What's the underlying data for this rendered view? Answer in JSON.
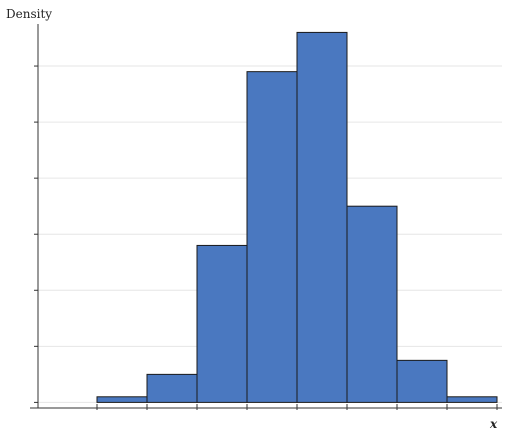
{
  "chart_data": {
    "type": "histogram",
    "y_label": "Density",
    "x_label": "x",
    "bins": [
      0,
      1,
      2,
      3,
      4,
      5,
      6,
      7,
      8
    ],
    "values": [
      0.1,
      0.5,
      2.8,
      5.9,
      6.6,
      3.5,
      0.75,
      0.1
    ],
    "color": "#4a78c0",
    "xlim": [
      -1.2,
      8.1
    ],
    "ylim": [
      -0.1,
      6.75
    ],
    "xticks": [
      0,
      1,
      2,
      3,
      4,
      5,
      6,
      7,
      8
    ],
    "yticks": [
      0,
      1,
      2,
      3,
      4,
      5,
      6
    ],
    "grid": true
  }
}
